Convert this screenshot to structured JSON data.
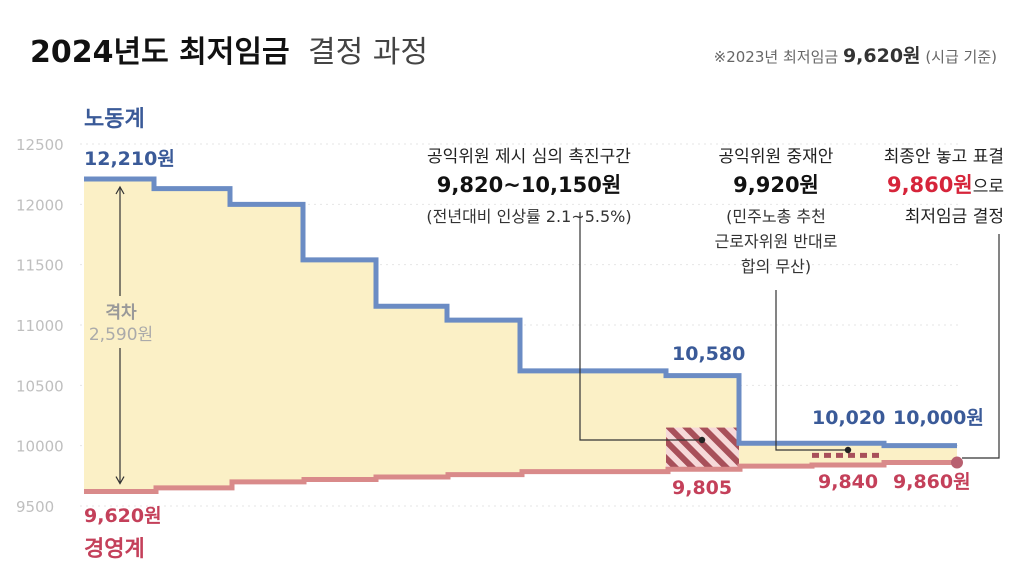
{
  "header": {
    "title_bold": "2024년도 최저임금",
    "title_light": "결정 과정",
    "note_prefix": "※2023년 최저임금 ",
    "note_value": "9,620원",
    "note_suffix": "(시급 기준)"
  },
  "chart_data": {
    "type": "line",
    "title": "2024년도 최저임금 결정 과정",
    "y_ticks": [
      9500,
      10000,
      10500,
      11000,
      11500,
      12000,
      12500
    ],
    "ylim": [
      9500,
      12500
    ],
    "series": [
      {
        "name": "노동계",
        "color": "#6b8cc4",
        "label_color": "#3a5a98",
        "steps": [
          12210,
          12130,
          12000,
          11540,
          11155,
          11040,
          10620,
          10580,
          10020,
          10000
        ],
        "value_labels": [
          "12,210원",
          "10,580",
          "10,020",
          "10,000원"
        ]
      },
      {
        "name": "경영계",
        "color": "#d98a8a",
        "label_color": "#c4405a",
        "steps": [
          9620,
          9650,
          9700,
          9720,
          9740,
          9760,
          9785,
          9805,
          9830,
          9840,
          9860
        ],
        "value_labels": [
          "9,620원",
          "9,805",
          "9,840",
          "9,860원"
        ]
      }
    ],
    "gap_label": "격차",
    "gap_value": "2,590원",
    "annotations": [
      {
        "title": "공익위원 제시 심의 촉진구간",
        "value": "9,820~10,150원",
        "detail": [
          "(전년대비 인상률 2.1~5.5%)"
        ],
        "range": [
          9820,
          10150
        ]
      },
      {
        "title": "공익위원 중재안",
        "value": "9,920원",
        "detail": [
          "(민주노총 추천",
          "근로자위원 반대로",
          "합의 무산)"
        ],
        "level": 9920
      },
      {
        "title": "최종안 놓고 표결",
        "value_highlight": "9,860원",
        "value_suffix": "으로",
        "detail": [
          "최저임금 결정"
        ],
        "level": 9860
      }
    ],
    "colors": {
      "fill": "#fbf0c6",
      "hatch": "#a8505a",
      "final_dot": "#b86070",
      "tick_text": "#bfbfbf",
      "guide": "#e6e6e6",
      "highlight": "#d6243a"
    }
  }
}
